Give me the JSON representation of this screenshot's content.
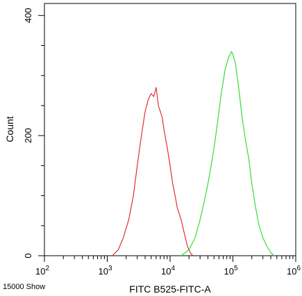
{
  "chart_data": {
    "type": "line",
    "title": "",
    "xlabel": "FITC B525-FITC-A",
    "ylabel": "Count",
    "x_scale": "log",
    "xlim": [
      100,
      1000000
    ],
    "ylim": [
      0,
      420
    ],
    "x_ticks": [
      {
        "value": 100,
        "base": "10",
        "exp": "2"
      },
      {
        "value": 1000,
        "base": "10",
        "exp": "3"
      },
      {
        "value": 10000,
        "base": "10",
        "exp": "4"
      },
      {
        "value": 100000,
        "base": "10",
        "exp": "5"
      },
      {
        "value": 1000000,
        "base": "10",
        "exp": "6"
      }
    ],
    "y_ticks": [
      {
        "value": 0,
        "label": "0"
      },
      {
        "value": 200,
        "label": "200"
      },
      {
        "value": 400,
        "label": "400"
      }
    ],
    "grid": false,
    "legend": "none",
    "footer_note": "15000 Show",
    "series": [
      {
        "color": "#e03030",
        "x": [
          1200,
          1500,
          1800,
          2200,
          2600,
          3000,
          3500,
          4000,
          4500,
          5000,
          5500,
          6000,
          6500,
          7000,
          7500,
          8000,
          9000,
          10000,
          11000,
          12000,
          13000,
          15000,
          17000,
          19000,
          21000,
          23000
        ],
        "y": [
          0,
          10,
          30,
          60,
          100,
          150,
          200,
          240,
          260,
          270,
          265,
          280,
          250,
          240,
          230,
          210,
          180,
          150,
          120,
          100,
          80,
          60,
          35,
          15,
          5,
          0
        ]
      },
      {
        "color": "#33dd33",
        "x": [
          15000,
          20000,
          25000,
          30000,
          35000,
          40000,
          45000,
          50000,
          55000,
          60000,
          65000,
          70000,
          75000,
          80000,
          85000,
          90000,
          95000,
          100000,
          110000,
          120000,
          130000,
          140000,
          160000,
          180000,
          200000,
          230000,
          260000,
          300000,
          350000,
          400000,
          450000
        ],
        "y": [
          0,
          10,
          30,
          60,
          90,
          120,
          150,
          180,
          210,
          240,
          270,
          290,
          310,
          320,
          330,
          335,
          340,
          335,
          320,
          290,
          260,
          230,
          190,
          160,
          120,
          80,
          50,
          30,
          15,
          5,
          0
        ]
      }
    ]
  }
}
